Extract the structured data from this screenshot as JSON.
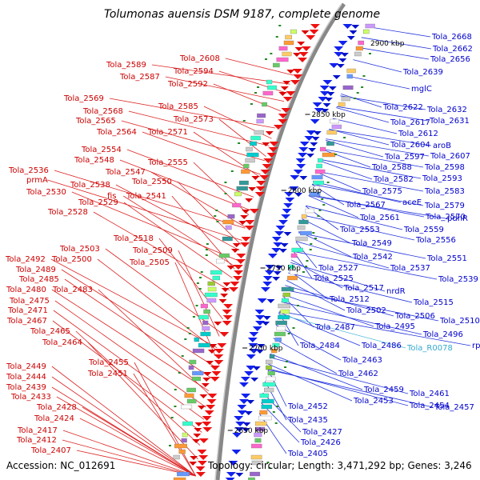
{
  "title": "Tolumonas auensis DSM 9187, complete genome",
  "footer": {
    "accession": "Accession: NC_012691",
    "summary": "Topology: circular; Length: 3,471,292 bp; Genes: 3,246"
  },
  "colors": {
    "left_labels": "#cc0000",
    "right_labels": "#0000cc",
    "rna_label": "#33aacc",
    "backbone": "#888888"
  },
  "scale_labels": [
    "2900 kbp",
    "2850 kbp",
    "2800 kbp",
    "2750 kbp",
    "2700 kbp",
    "2650 kbp"
  ],
  "left_labels": [
    "Tola_2608",
    "Tola_2589",
    "Tola_2594",
    "Tola_2587",
    "Tola_2592",
    "Tola_2569",
    "Tola_2585",
    "Tola_2568",
    "Tola_2573",
    "Tola_2565",
    "Tola_2564",
    "Tola_2571",
    "Tola_2554",
    "Tola_2548",
    "Tola_2555",
    "Tola_2547",
    "Tola_2536",
    "prmA",
    "Tola_2550",
    "Tola_2538",
    "Tola_2530",
    "fis",
    "Tola_2541",
    "Tola_2529",
    "Tola_2528",
    "Tola_2518",
    "Tola_2503",
    "Tola_2509",
    "Tola_2492",
    "Tola_2500",
    "Tola_2505",
    "Tola_2489",
    "Tola_2485",
    "Tola_2480",
    "Tola_2483",
    "Tola_2475",
    "Tola_2471",
    "Tola_2467",
    "Tola_2465",
    "Tola_2464",
    "Tola_2455",
    "Tola_2449",
    "Tola_2451",
    "Tola_2444",
    "Tola_2439",
    "Tola_2433",
    "Tola_2428",
    "Tola_2424",
    "Tola_2417",
    "Tola_2412",
    "Tola_2407"
  ],
  "right_labels": [
    "Tola_2668",
    "2900 kbp",
    "Tola_2662",
    "Tola_2656",
    "Tola_2639",
    "mglC",
    "Tola_2622",
    "Tola_2632",
    "Tola_2631",
    "Tola_2617",
    "Tola_2612",
    "Tola_2604",
    "aroB",
    "Tola_2597",
    "Tola_2607",
    "Tola_2588",
    "Tola_2598",
    "Tola_2582",
    "Tola_2593",
    "Tola_2575",
    "Tola_2583",
    "Tola_2567",
    "aceE",
    "Tola_2579",
    "Tola_2561",
    "Tola_2570",
    "pdhR",
    "Tola_2553",
    "Tola_2559",
    "Tola_2549",
    "Tola_2556",
    "Tola_2542",
    "Tola_2551",
    "Tola_2527",
    "Tola_2537",
    "Tola_2525",
    "Tola_2539",
    "Tola_2517",
    "nrdR",
    "Tola_2512",
    "Tola_2515",
    "Tola_2502",
    "Tola_2506",
    "Tola_2510",
    "Tola_2487",
    "Tola_2495",
    "Tola_2496",
    "Tola_2484",
    "Tola_2486",
    "Tola_R0078",
    "rpsR",
    "Tola_2463",
    "Tola_2462",
    "Tola_2459",
    "Tola_2461",
    "Tola_2453",
    "Tola_2454",
    "Tola_2457",
    "Tola_2452",
    "Tola_2435",
    "Tola_2427",
    "Tola_2426",
    "Tola_2405"
  ]
}
